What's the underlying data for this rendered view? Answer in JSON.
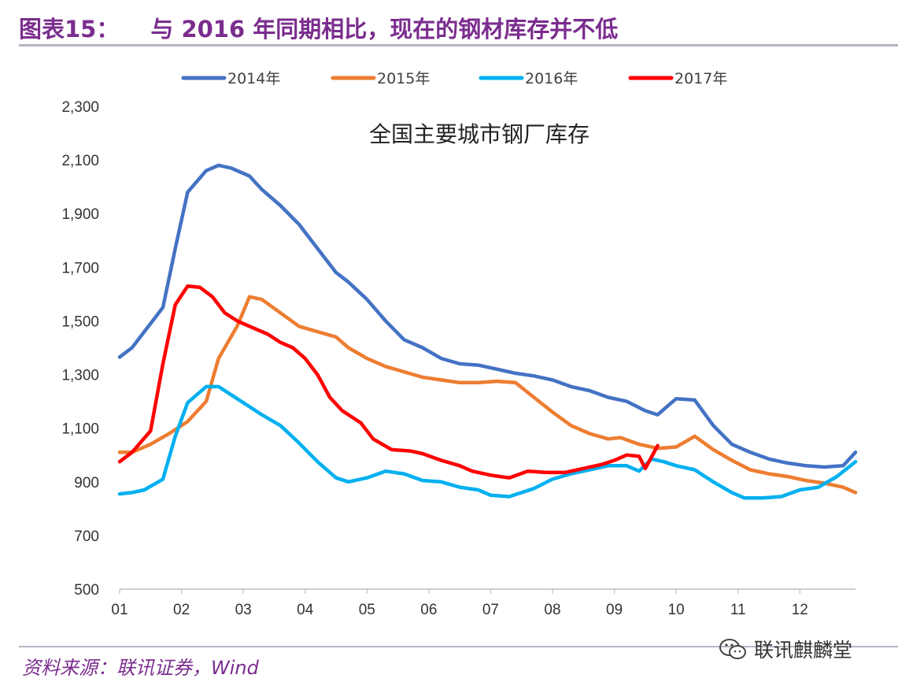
{
  "header": {
    "figure_number": "图表15：",
    "figure_caption": "与 2016 年同期相比，现在的钢材库存并不低"
  },
  "footer": {
    "source": "资料来源：联讯证券，Wind",
    "watermark": "联讯麒麟堂",
    "watermark_icon": "wechat-icon"
  },
  "chart_data": {
    "type": "line",
    "title": "全国主要城市钢厂库存",
    "xlabel": "",
    "ylabel": "",
    "ylim": [
      500,
      2300
    ],
    "yticks": [
      500,
      700,
      900,
      1100,
      1300,
      1500,
      1700,
      1900,
      2100,
      2300
    ],
    "ytick_labels": [
      "500",
      "700",
      "900",
      "1,100",
      "1,300",
      "1,500",
      "1,700",
      "1,900",
      "2,100",
      "2,300"
    ],
    "xlim": [
      1,
      12.9
    ],
    "xticks": [
      1,
      2,
      3,
      4,
      5,
      6,
      7,
      8,
      9,
      10,
      11,
      12
    ],
    "xtick_labels": [
      "01",
      "02",
      "03",
      "04",
      "05",
      "06",
      "07",
      "08",
      "09",
      "10",
      "11",
      "12"
    ],
    "legend_position": "top",
    "series": [
      {
        "name": "2014年",
        "color": "#4472c4",
        "x": [
          1.0,
          1.2,
          1.4,
          1.7,
          1.9,
          2.1,
          2.4,
          2.6,
          2.8,
          3.1,
          3.3,
          3.6,
          3.9,
          4.2,
          4.5,
          4.7,
          5.0,
          5.3,
          5.6,
          5.9,
          6.2,
          6.5,
          6.8,
          7.1,
          7.4,
          7.7,
          8.0,
          8.3,
          8.6,
          8.9,
          9.2,
          9.5,
          9.7,
          10.0,
          10.3,
          10.6,
          10.9,
          11.2,
          11.5,
          11.8,
          12.1,
          12.4,
          12.7,
          12.9
        ],
        "y": [
          1365,
          1400,
          1460,
          1550,
          1770,
          1980,
          2060,
          2080,
          2070,
          2040,
          1990,
          1930,
          1860,
          1770,
          1680,
          1645,
          1580,
          1500,
          1430,
          1400,
          1360,
          1340,
          1335,
          1320,
          1305,
          1295,
          1280,
          1255,
          1240,
          1215,
          1200,
          1165,
          1150,
          1210,
          1205,
          1110,
          1040,
          1010,
          985,
          970,
          960,
          955,
          960,
          1010
        ]
      },
      {
        "name": "2015年",
        "color": "#ed7d31",
        "x": [
          1.0,
          1.2,
          1.5,
          1.8,
          2.1,
          2.4,
          2.6,
          2.9,
          3.1,
          3.3,
          3.6,
          3.9,
          4.2,
          4.5,
          4.7,
          5.0,
          5.3,
          5.6,
          5.9,
          6.2,
          6.5,
          6.8,
          7.1,
          7.4,
          7.7,
          8.0,
          8.3,
          8.6,
          8.9,
          9.1,
          9.4,
          9.7,
          10.0,
          10.3,
          10.6,
          10.9,
          11.2,
          11.5,
          11.8,
          12.1,
          12.4,
          12.7,
          12.9
        ],
        "y": [
          1010,
          1010,
          1040,
          1080,
          1125,
          1200,
          1360,
          1480,
          1590,
          1580,
          1530,
          1480,
          1460,
          1440,
          1400,
          1360,
          1330,
          1310,
          1290,
          1280,
          1270,
          1270,
          1275,
          1270,
          1215,
          1160,
          1110,
          1080,
          1060,
          1065,
          1040,
          1025,
          1030,
          1070,
          1020,
          980,
          945,
          930,
          920,
          905,
          895,
          880,
          860
        ]
      },
      {
        "name": "2016年",
        "color": "#00b0f0",
        "x": [
          1.0,
          1.2,
          1.4,
          1.7,
          1.9,
          2.1,
          2.4,
          2.6,
          2.9,
          3.1,
          3.3,
          3.6,
          3.9,
          4.2,
          4.5,
          4.7,
          5.0,
          5.3,
          5.6,
          5.9,
          6.2,
          6.5,
          6.8,
          7.0,
          7.3,
          7.7,
          8.0,
          8.3,
          8.6,
          8.9,
          9.2,
          9.4,
          9.6,
          9.8,
          10.0,
          10.3,
          10.6,
          10.9,
          11.1,
          11.4,
          11.7,
          12.0,
          12.3,
          12.6,
          12.9
        ],
        "y": [
          855,
          860,
          870,
          910,
          1070,
          1195,
          1255,
          1255,
          1210,
          1180,
          1150,
          1110,
          1045,
          975,
          915,
          900,
          915,
          940,
          930,
          905,
          900,
          880,
          870,
          850,
          845,
          875,
          910,
          930,
          945,
          960,
          960,
          940,
          985,
          975,
          960,
          945,
          900,
          860,
          840,
          840,
          845,
          870,
          880,
          920,
          975
        ]
      },
      {
        "name": "2017年",
        "color": "#ff0000",
        "x": [
          1.0,
          1.2,
          1.5,
          1.7,
          1.9,
          2.1,
          2.3,
          2.5,
          2.7,
          2.9,
          3.1,
          3.4,
          3.6,
          3.8,
          4.0,
          4.2,
          4.4,
          4.6,
          4.9,
          5.1,
          5.4,
          5.7,
          5.9,
          6.2,
          6.5,
          6.7,
          7.0,
          7.3,
          7.6,
          7.9,
          8.2,
          8.5,
          8.8,
          9.0,
          9.2,
          9.4,
          9.5,
          9.7
        ],
        "y": [
          975,
          1010,
          1090,
          1340,
          1560,
          1630,
          1625,
          1590,
          1530,
          1500,
          1480,
          1450,
          1420,
          1400,
          1360,
          1300,
          1215,
          1165,
          1120,
          1060,
          1020,
          1015,
          1005,
          980,
          960,
          940,
          925,
          915,
          940,
          935,
          935,
          950,
          965,
          980,
          1000,
          995,
          950,
          1035
        ]
      }
    ]
  }
}
